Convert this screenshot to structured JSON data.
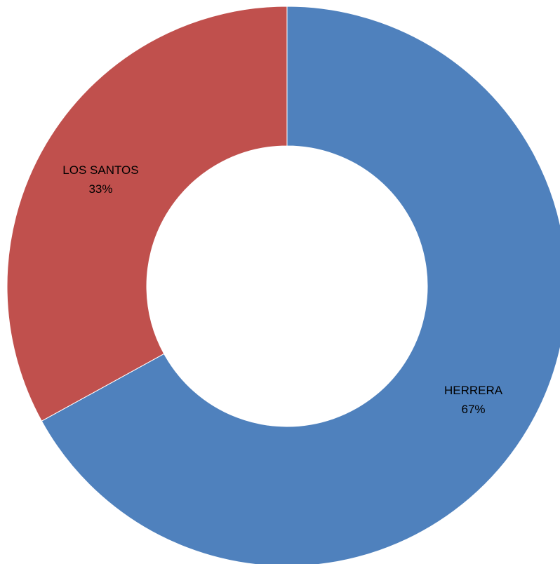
{
  "chart_data": {
    "type": "pie",
    "variant": "donut",
    "title": "",
    "start_angle_deg": 0,
    "direction": "clockwise",
    "legend": "none",
    "slices": [
      {
        "name": "HERRERA",
        "value": 67,
        "label": "67%",
        "color": "#4F81BD"
      },
      {
        "name": "LOS SANTOS",
        "value": 33,
        "label": "33%",
        "color": "#C0504D"
      }
    ]
  }
}
